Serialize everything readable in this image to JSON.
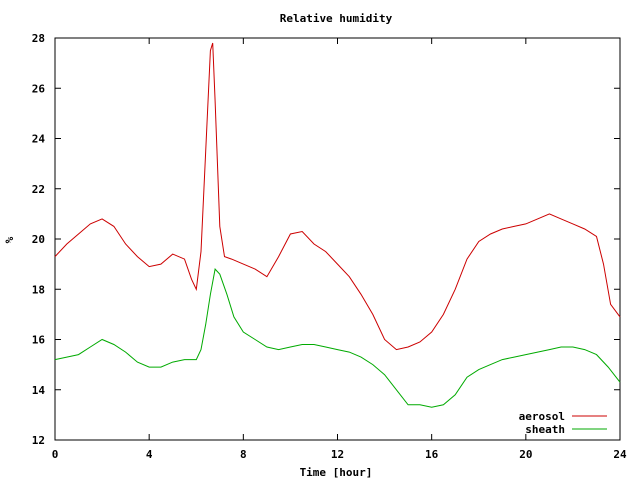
{
  "chart_data": {
    "type": "line",
    "title": "Relative humidity",
    "xlabel": "Time [hour]",
    "ylabel": "%",
    "xlim": [
      0,
      24
    ],
    "ylim": [
      12,
      28
    ],
    "xticks": [
      "0",
      "4",
      "8",
      "12",
      "16",
      "20",
      "24"
    ],
    "yticks": [
      "12",
      "14",
      "16",
      "18",
      "20",
      "22",
      "24",
      "26",
      "28"
    ],
    "grid": false,
    "legend_position": "bottom-right",
    "series": [
      {
        "name": "aerosol",
        "color": "#cc0000",
        "x": [
          0,
          0.5,
          1,
          1.5,
          2,
          2.5,
          3,
          3.5,
          4,
          4.5,
          5,
          5.5,
          5.8,
          6,
          6.2,
          6.4,
          6.6,
          6.7,
          6.8,
          7,
          7.2,
          7.5,
          8,
          8.5,
          9,
          9.5,
          10,
          10.5,
          11,
          11.5,
          12,
          12.5,
          13,
          13.5,
          14,
          14.5,
          15,
          15.5,
          16,
          16.5,
          17,
          17.5,
          18,
          18.5,
          19,
          19.5,
          20,
          20.5,
          21,
          21.5,
          22,
          22.5,
          23,
          23.3,
          23.6,
          24
        ],
        "y": [
          19.3,
          19.8,
          20.2,
          20.6,
          20.8,
          20.5,
          19.8,
          19.3,
          18.9,
          19.0,
          19.4,
          19.2,
          18.4,
          18.0,
          19.5,
          23.5,
          27.5,
          27.8,
          25.5,
          20.5,
          19.3,
          19.2,
          19.0,
          18.8,
          18.5,
          19.3,
          20.2,
          20.3,
          19.8,
          19.5,
          19.0,
          18.5,
          17.8,
          17.0,
          16.0,
          15.6,
          15.7,
          15.9,
          16.3,
          17.0,
          18.0,
          19.2,
          19.9,
          20.2,
          20.4,
          20.5,
          20.6,
          20.8,
          21.0,
          20.8,
          20.6,
          20.4,
          20.1,
          19.0,
          17.4,
          16.9
        ]
      },
      {
        "name": "sheath",
        "color": "#00aa00",
        "x": [
          0,
          0.5,
          1,
          1.5,
          2,
          2.5,
          3,
          3.5,
          4,
          4.5,
          5,
          5.5,
          6,
          6.2,
          6.4,
          6.6,
          6.8,
          7,
          7.3,
          7.6,
          8,
          8.5,
          9,
          9.5,
          10,
          10.5,
          11,
          11.5,
          12,
          12.5,
          13,
          13.5,
          14,
          14.5,
          15,
          15.5,
          16,
          16.5,
          17,
          17.5,
          18,
          18.5,
          19,
          19.5,
          20,
          20.5,
          21,
          21.5,
          22,
          22.5,
          23,
          23.5,
          24
        ],
        "y": [
          15.2,
          15.3,
          15.4,
          15.7,
          16.0,
          15.8,
          15.5,
          15.1,
          14.9,
          14.9,
          15.1,
          15.2,
          15.2,
          15.6,
          16.6,
          17.8,
          18.8,
          18.6,
          17.8,
          16.9,
          16.3,
          16.0,
          15.7,
          15.6,
          15.7,
          15.8,
          15.8,
          15.7,
          15.6,
          15.5,
          15.3,
          15.0,
          14.6,
          14.0,
          13.4,
          13.4,
          13.3,
          13.4,
          13.8,
          14.5,
          14.8,
          15.0,
          15.2,
          15.3,
          15.4,
          15.5,
          15.6,
          15.7,
          15.7,
          15.6,
          15.4,
          14.9,
          14.3
        ]
      }
    ]
  }
}
